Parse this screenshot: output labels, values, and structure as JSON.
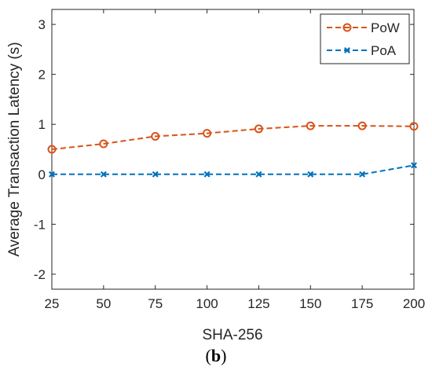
{
  "panel_label_open": "(",
  "panel_label_letter": "b",
  "panel_label_close": ")",
  "chart_data": {
    "type": "line",
    "xlabel": "SHA-256",
    "ylabel": "Average Transaction Latency (s)",
    "x": [
      25,
      50,
      75,
      100,
      125,
      150,
      175,
      200
    ],
    "xlim": [
      25,
      200
    ],
    "ylim": [
      -2.3,
      3.3
    ],
    "xticks": [
      25,
      50,
      75,
      100,
      125,
      150,
      175,
      200
    ],
    "yticks": [
      -2,
      -1,
      0,
      1,
      2,
      3
    ],
    "grid": false,
    "legend_position": "top-right",
    "series": [
      {
        "name": "PoW",
        "color": "#D95319",
        "marker": "circle",
        "line": "dashed",
        "values": [
          0.5,
          0.61,
          0.76,
          0.82,
          0.91,
          0.97,
          0.97,
          0.96
        ]
      },
      {
        "name": "PoA",
        "color": "#0072BD",
        "marker": "x",
        "line": "dashed",
        "values": [
          0.0,
          0.0,
          0.0,
          0.0,
          0.0,
          0.0,
          0.0,
          0.18
        ]
      }
    ]
  }
}
